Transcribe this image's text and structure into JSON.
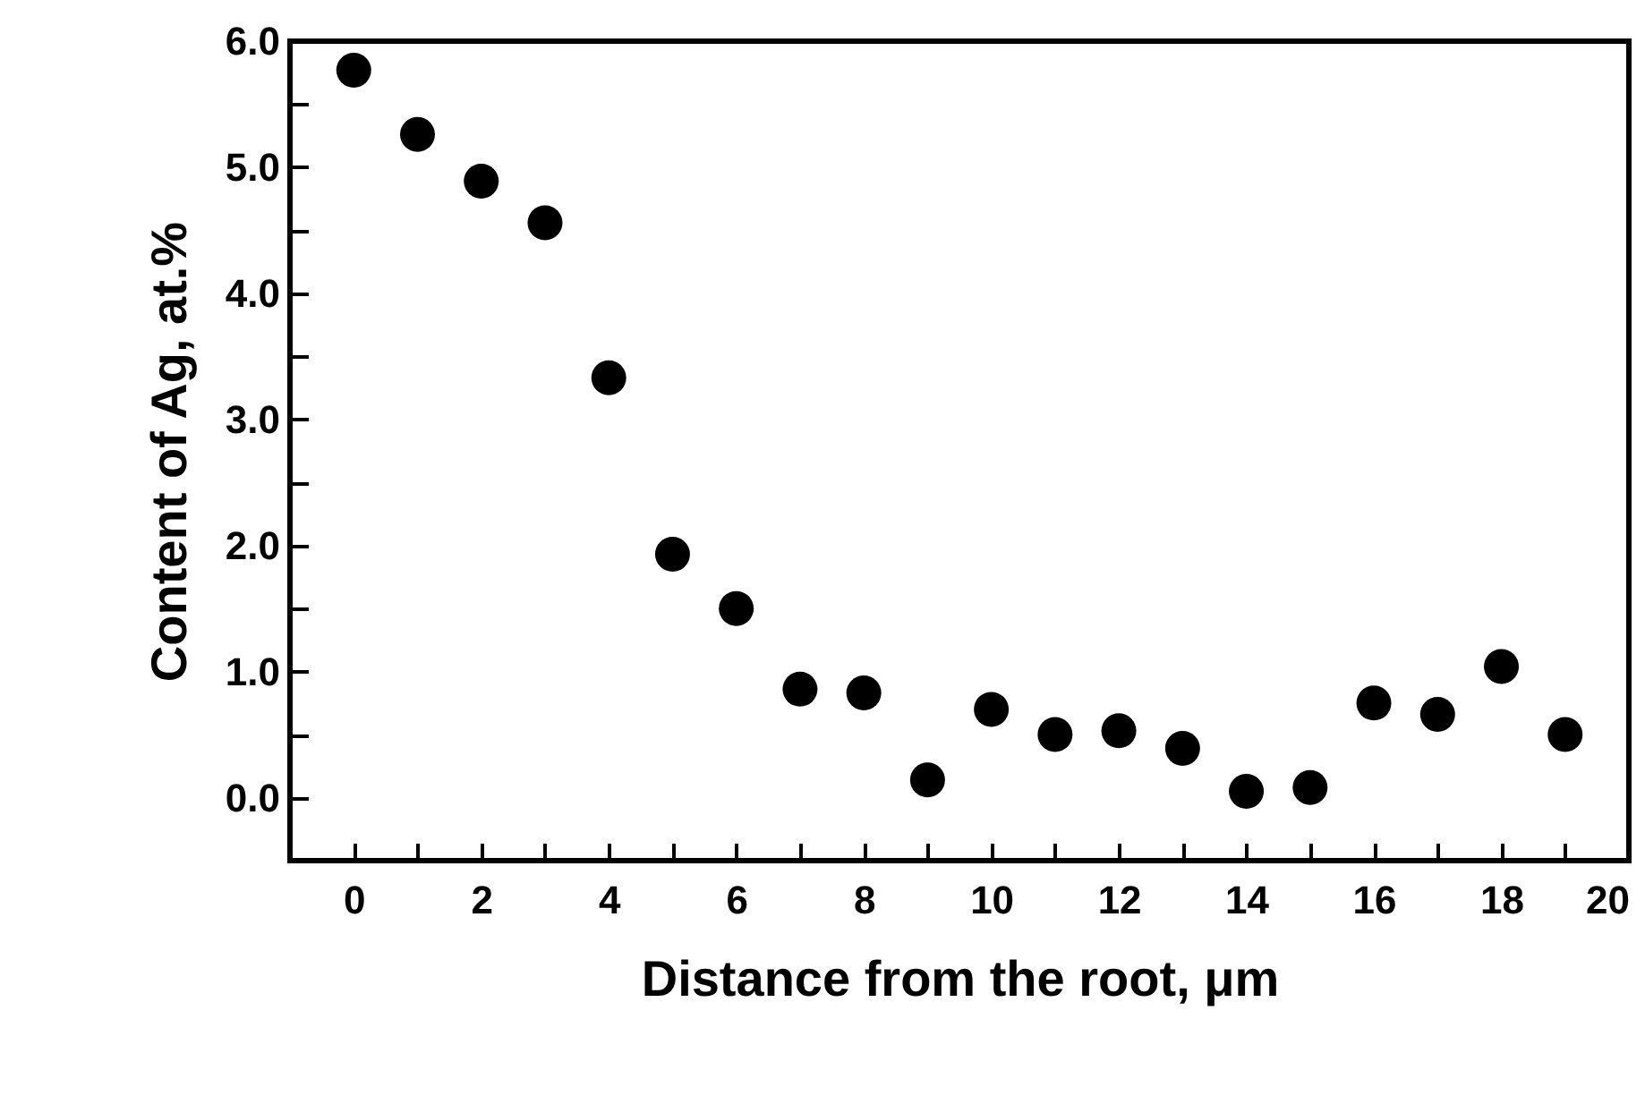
{
  "chart_data": {
    "type": "scatter",
    "xlabel": "Distance from the root, μm",
    "ylabel": "Content of Ag, at.%",
    "x": [
      0,
      1,
      2,
      3,
      4,
      5,
      6,
      7,
      8,
      9,
      10,
      11,
      12,
      13,
      14,
      15,
      16,
      17,
      18,
      19
    ],
    "series": [
      {
        "color": "#000000",
        "values": [
          5.77,
          5.26,
          4.89,
          4.56,
          3.33,
          1.93,
          1.5,
          0.86,
          0.83,
          0.14,
          0.7,
          0.5,
          0.53,
          0.39,
          0.05,
          0.08,
          0.75,
          0.66,
          1.04,
          0.5
        ]
      }
    ],
    "marker": "circle",
    "grid": false,
    "xlim": [
      -1,
      20
    ],
    "xticks": [
      0,
      {
        "value": 1,
        "label": null
      },
      2,
      {
        "value": 3,
        "label": null
      },
      4,
      {
        "value": 5,
        "label": null
      },
      6,
      {
        "value": 7,
        "label": null
      },
      8,
      {
        "value": 9,
        "label": null
      },
      10,
      {
        "value": 11,
        "label": null
      },
      12,
      {
        "value": 13,
        "label": null
      },
      14,
      {
        "value": 15,
        "label": null
      },
      16,
      {
        "value": 17,
        "label": null
      },
      18,
      {
        "value": 19,
        "label": null
      },
      20
    ],
    "ylim": [
      -0.5,
      6.0
    ],
    "yticks": [
      {
        "value": 0,
        "label": "0.0"
      },
      {
        "value": 0.5,
        "label": null
      },
      {
        "value": 1,
        "label": "1.0"
      },
      {
        "value": 1.5,
        "label": null
      },
      {
        "value": 2,
        "label": "2.0"
      },
      {
        "value": 2.5,
        "label": null
      },
      {
        "value": 3,
        "label": "3.0"
      },
      {
        "value": 3.5,
        "label": null
      },
      {
        "value": 4,
        "label": "4.0"
      },
      {
        "value": 4.5,
        "label": null
      },
      {
        "value": 5,
        "label": "5.0"
      },
      {
        "value": 5.5,
        "label": null
      },
      {
        "value": 6,
        "label": "6.0"
      }
    ]
  }
}
